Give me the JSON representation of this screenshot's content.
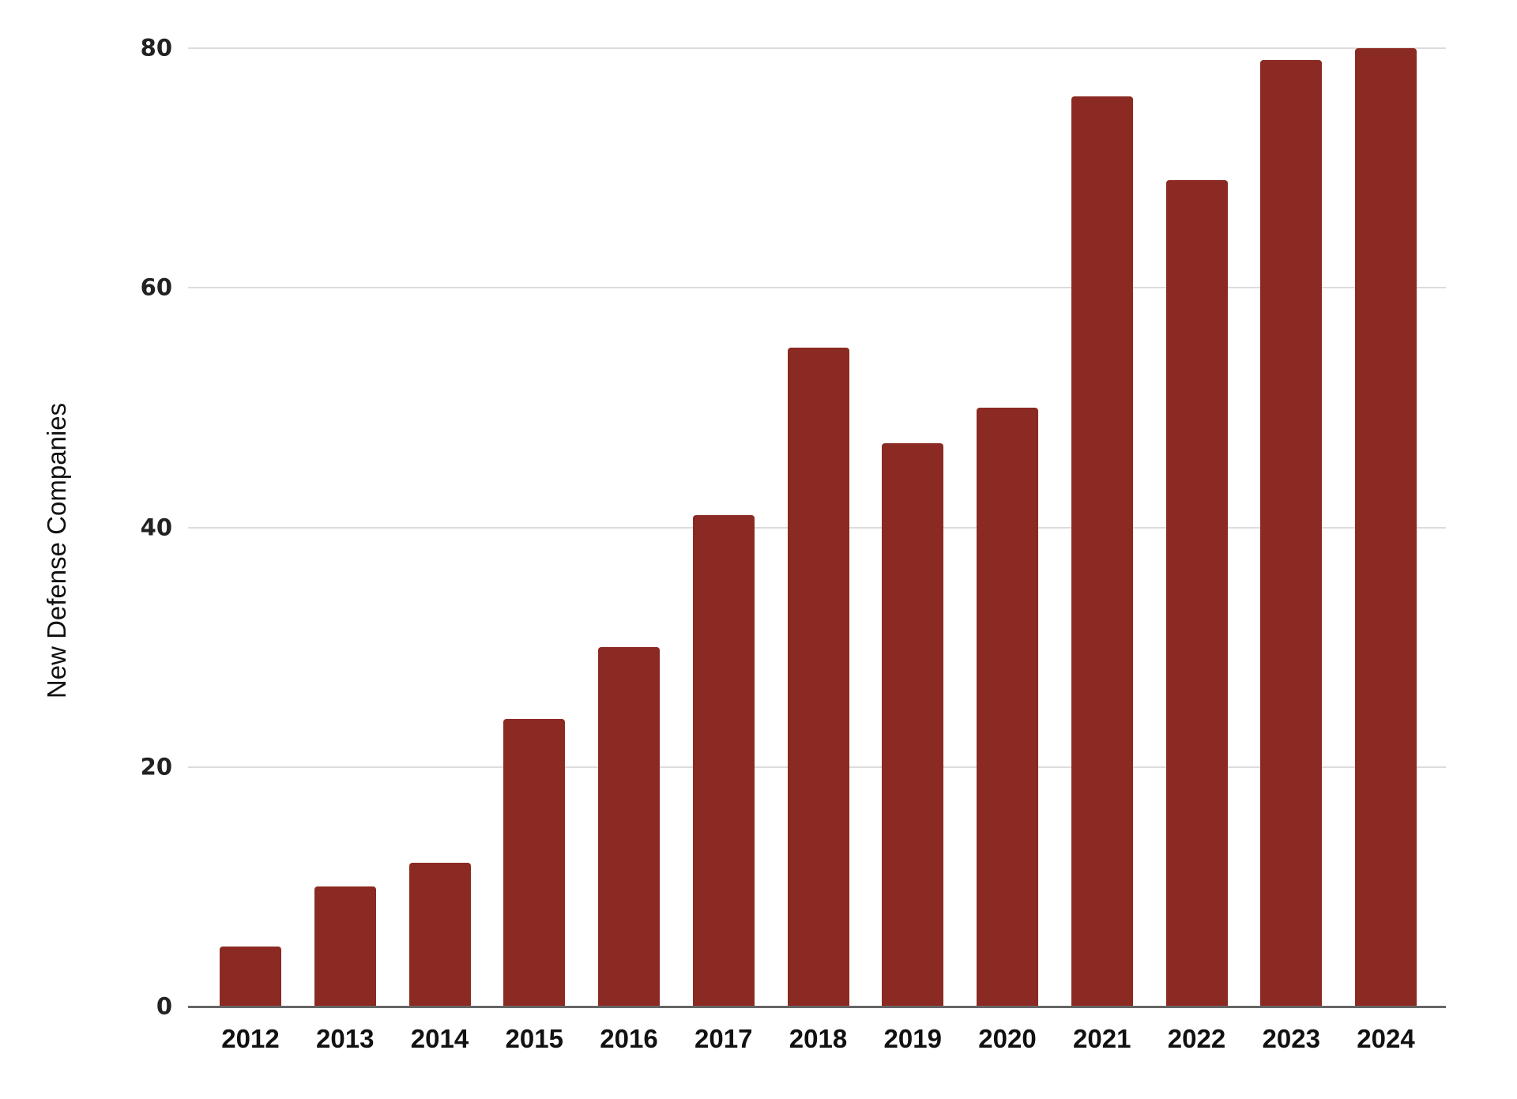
{
  "chart_data": {
    "type": "bar",
    "title": "",
    "xlabel": "",
    "ylabel": "New Defense Companies",
    "categories": [
      "2012",
      "2013",
      "2014",
      "2015",
      "2016",
      "2017",
      "2018",
      "2019",
      "2020",
      "2021",
      "2022",
      "2023",
      "2024"
    ],
    "values": [
      5,
      10,
      12,
      24,
      30,
      41,
      55,
      47,
      50,
      76,
      69,
      79,
      80
    ],
    "ylim": [
      0,
      80
    ],
    "yticks": [
      0,
      20,
      40,
      60,
      80
    ],
    "ytick_labels": [
      "0",
      "20",
      "40",
      "60",
      "80"
    ],
    "grid": true,
    "legend": null,
    "bar_color": "#8B2A22"
  }
}
